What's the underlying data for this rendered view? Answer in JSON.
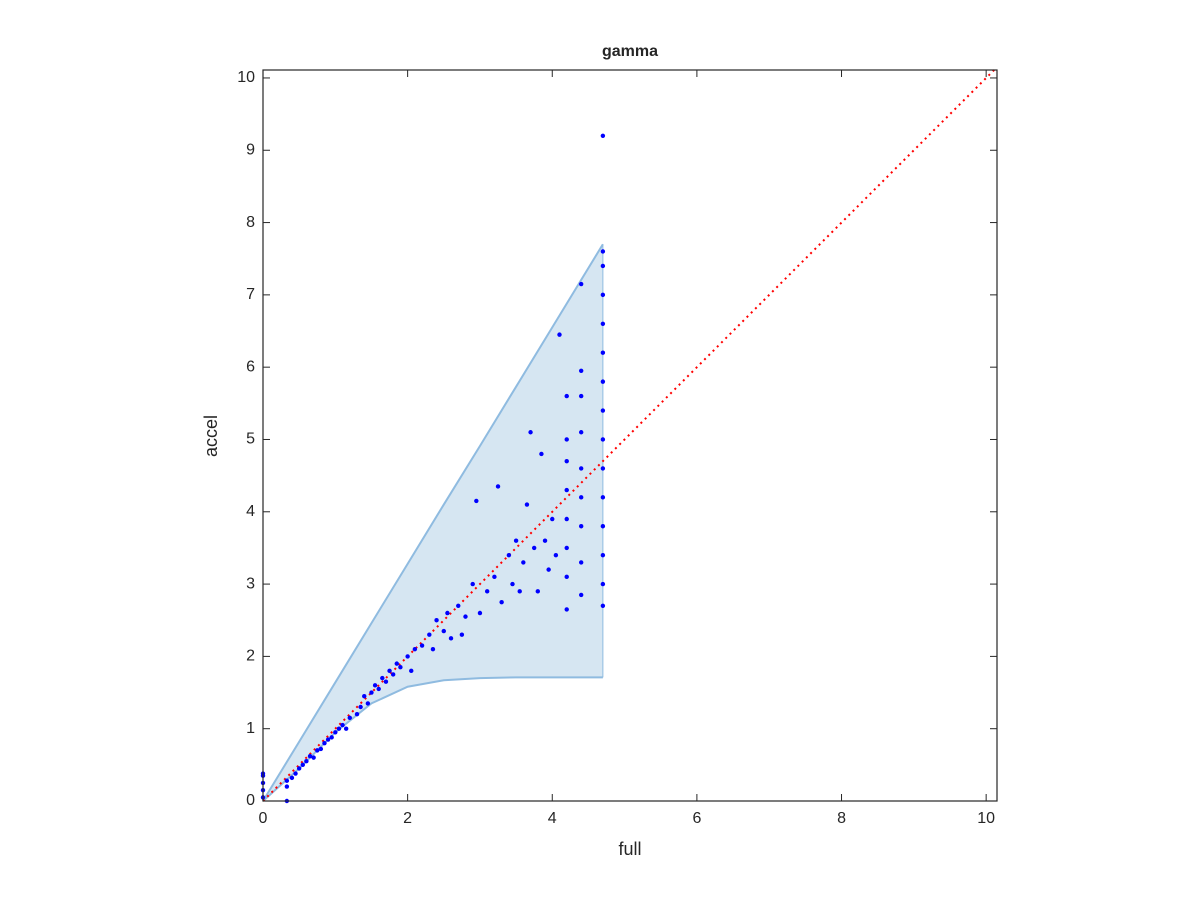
{
  "chart_data": {
    "type": "scatter",
    "title": "gamma",
    "x_label": "full",
    "y_label": "accel",
    "xlim": [
      0,
      10.15
    ],
    "ylim": [
      0,
      10.11
    ],
    "xticks": [
      0,
      2,
      4,
      6,
      8,
      10
    ],
    "yticks": [
      0,
      1,
      2,
      3,
      4,
      5,
      6,
      7,
      8,
      9,
      10
    ],
    "color": "#0000ff",
    "x": [
      0,
      0,
      0,
      0,
      0,
      0.33,
      0.33,
      0.33,
      0.4,
      0.45,
      0.5,
      0.55,
      0.6,
      0.65,
      0.7,
      0.75,
      0.8,
      0.85,
      0.9,
      0.95,
      1.0,
      1.05,
      1.1,
      1.15,
      1.2,
      1.3,
      1.35,
      1.4,
      1.45,
      1.5,
      1.55,
      1.6,
      1.65,
      1.7,
      1.75,
      1.8,
      1.85,
      1.9,
      2.0,
      2.05,
      2.1,
      2.2,
      2.3,
      2.35,
      2.4,
      2.5,
      2.55,
      2.6,
      2.7,
      2.75,
      2.8,
      2.9,
      2.95,
      3.0,
      3.1,
      3.2,
      3.25,
      3.3,
      3.4,
      3.45,
      3.5,
      3.55,
      3.6,
      3.65,
      3.7,
      3.75,
      3.8,
      3.85,
      3.9,
      3.95,
      4.0,
      4.05,
      4.1,
      4.2,
      4.2,
      4.2,
      4.2,
      4.2,
      4.2,
      4.2,
      4.2,
      4.4,
      4.4,
      4.4,
      4.4,
      4.4,
      4.4,
      4.4,
      4.4,
      4.4,
      4.7,
      4.7,
      4.7,
      4.7,
      4.7,
      4.7,
      4.7,
      4.7,
      4.7,
      4.7,
      4.7,
      4.7,
      4.7,
      4.7,
      4.7
    ],
    "y": [
      0.05,
      0.15,
      0.25,
      0.35,
      0.38,
      0,
      0.2,
      0.28,
      0.32,
      0.38,
      0.45,
      0.5,
      0.55,
      0.62,
      0.6,
      0.7,
      0.72,
      0.8,
      0.85,
      0.88,
      0.95,
      1.0,
      1.05,
      1.0,
      1.15,
      1.2,
      1.3,
      1.45,
      1.35,
      1.5,
      1.6,
      1.55,
      1.7,
      1.65,
      1.8,
      1.75,
      1.9,
      1.85,
      2.0,
      1.8,
      2.1,
      2.15,
      2.3,
      2.1,
      2.5,
      2.35,
      2.6,
      2.25,
      2.7,
      2.3,
      2.55,
      3.0,
      4.15,
      2.6,
      2.9,
      3.1,
      4.35,
      2.75,
      3.4,
      3.0,
      3.6,
      2.9,
      3.3,
      4.1,
      5.1,
      3.5,
      2.9,
      4.8,
      3.6,
      3.2,
      3.9,
      3.4,
      6.45,
      2.65,
      3.1,
      3.5,
      3.9,
      4.3,
      4.7,
      5.0,
      5.6,
      2.85,
      3.3,
      3.8,
      4.2,
      4.6,
      5.1,
      5.6,
      5.95,
      7.15,
      2.7,
      3.0,
      3.4,
      3.8,
      4.2,
      4.6,
      5.0,
      5.4,
      5.8,
      6.2,
      6.6,
      7.0,
      7.4,
      7.6,
      9.2
    ],
    "band": {
      "x": [
        0,
        0.5,
        1,
        1.5,
        2,
        2.5,
        3,
        3.5,
        4,
        4.7
      ],
      "upper": [
        0,
        0.82,
        1.64,
        2.46,
        3.28,
        4.1,
        4.91,
        5.73,
        6.55,
        7.7
      ],
      "lower": [
        0,
        0.45,
        0.95,
        1.35,
        1.58,
        1.67,
        1.7,
        1.71,
        1.71,
        1.71
      ],
      "color": "#d6e6f2",
      "edge_color": "#8fbbe0"
    },
    "reference_line": {
      "x": [
        0,
        10.11
      ],
      "y": [
        0,
        10.11
      ],
      "color": "#ff0000"
    }
  }
}
